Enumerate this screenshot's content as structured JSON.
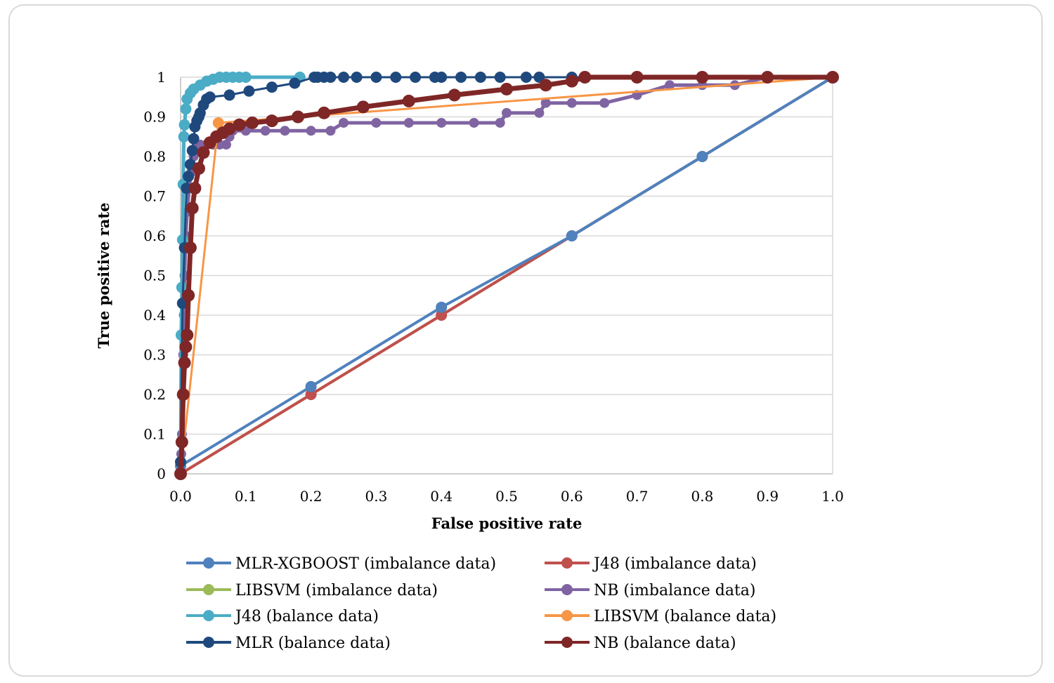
{
  "chart_data": {
    "type": "line",
    "title": "",
    "xlabel": "False positive rate",
    "ylabel": "True positive rate",
    "xlim": [
      0,
      1
    ],
    "ylim": [
      0,
      1
    ],
    "x_ticks": [
      "0.0",
      "0.1",
      "0.2",
      "0.3",
      "0.4",
      "0.5",
      "0.6",
      "0.7",
      "0.8",
      "0.9",
      "1.0"
    ],
    "y_ticks": [
      "0",
      "0.1",
      "0.2",
      "0.3",
      "0.4",
      "0.5",
      "0.6",
      "0.7",
      "0.8",
      "0.9",
      "1"
    ],
    "grid": "horizontal",
    "legend_position": "bottom",
    "series": [
      {
        "name": "MLR-XGBOOST (imbalance data)",
        "color": "#4f81bd",
        "x": [
          0,
          0.2,
          0.4,
          0.6,
          0.8,
          1.0
        ],
        "y": [
          0.02,
          0.22,
          0.42,
          0.6,
          0.8,
          1.0
        ]
      },
      {
        "name": "J48 (imbalance data)",
        "color": "#c0504d",
        "x": [
          0,
          0.2,
          0.4,
          0.6,
          0.8,
          1.0
        ],
        "y": [
          0,
          0.2,
          0.4,
          0.6,
          0.8,
          1.0
        ]
      },
      {
        "name": "LIBSVM (imbalance data)",
        "color": "#9bbb59",
        "x": [
          0,
          1.0
        ],
        "y": [
          0,
          1.0
        ]
      },
      {
        "name": "NB (imbalance data)",
        "color": "#8064a2",
        "x": [
          0,
          0.001,
          0.002,
          0.003,
          0.004,
          0.005,
          0.006,
          0.008,
          0.01,
          0.013,
          0.016,
          0.02,
          0.025,
          0.03,
          0.04,
          0.05,
          0.06,
          0.07,
          0.075,
          0.08,
          0.1,
          0.13,
          0.16,
          0.2,
          0.23,
          0.25,
          0.3,
          0.35,
          0.4,
          0.45,
          0.49,
          0.5,
          0.55,
          0.56,
          0.6,
          0.65,
          0.7,
          0.75,
          0.8,
          0.85,
          0.9,
          1.0
        ],
        "y": [
          0,
          0.05,
          0.1,
          0.2,
          0.3,
          0.4,
          0.5,
          0.6,
          0.66,
          0.72,
          0.76,
          0.8,
          0.82,
          0.83,
          0.83,
          0.83,
          0.83,
          0.83,
          0.85,
          0.865,
          0.865,
          0.865,
          0.865,
          0.865,
          0.865,
          0.885,
          0.885,
          0.885,
          0.885,
          0.885,
          0.885,
          0.91,
          0.91,
          0.935,
          0.935,
          0.935,
          0.955,
          0.98,
          0.98,
          0.98,
          1.0,
          1.0
        ]
      },
      {
        "name": "J48 (balance data)",
        "color": "#4bacc6",
        "x": [
          0,
          0.001,
          0.002,
          0.003,
          0.004,
          0.005,
          0.006,
          0.008,
          0.01,
          0.015,
          0.02,
          0.03,
          0.04,
          0.05,
          0.06,
          0.07,
          0.08,
          0.09,
          0.1,
          0.183
        ],
        "y": [
          0,
          0.35,
          0.47,
          0.59,
          0.73,
          0.85,
          0.88,
          0.92,
          0.945,
          0.96,
          0.97,
          0.98,
          0.99,
          0.995,
          1.0,
          1.0,
          1.0,
          1.0,
          1.0,
          1.0
        ]
      },
      {
        "name": "LIBSVM (balance data)",
        "color": "#f79646",
        "x": [
          0,
          0.058,
          1.0
        ],
        "y": [
          0,
          0.885,
          1.0
        ]
      },
      {
        "name": "MLR (balance data)",
        "color": "#1f497d",
        "x": [
          0,
          0.003,
          0.006,
          0.009,
          0.012,
          0.015,
          0.018,
          0.02,
          0.022,
          0.025,
          0.028,
          0.03,
          0.035,
          0.04,
          0.045,
          0.075,
          0.105,
          0.14,
          0.175,
          0.205,
          0.21,
          0.22,
          0.23,
          0.25,
          0.27,
          0.3,
          0.33,
          0.36,
          0.39,
          0.4,
          0.43,
          0.46,
          0.49,
          0.53,
          0.55,
          0.6,
          0.7,
          0.8,
          0.9,
          1.0
        ],
        "y": [
          0.03,
          0.43,
          0.57,
          0.72,
          0.75,
          0.78,
          0.815,
          0.845,
          0.875,
          0.89,
          0.9,
          0.91,
          0.93,
          0.945,
          0.95,
          0.955,
          0.965,
          0.975,
          0.985,
          1.0,
          1.0,
          1.0,
          1.0,
          1.0,
          1.0,
          1.0,
          1.0,
          1.0,
          1.0,
          1.0,
          1.0,
          1.0,
          1.0,
          1.0,
          1.0,
          1.0,
          1.0,
          1.0,
          1.0,
          1.0
        ]
      },
      {
        "name": "NB (balance data)",
        "color": "#7f2626",
        "x": [
          0,
          0.002,
          0.004,
          0.006,
          0.008,
          0.01,
          0.012,
          0.015,
          0.018,
          0.022,
          0.028,
          0.035,
          0.045,
          0.055,
          0.065,
          0.075,
          0.09,
          0.11,
          0.14,
          0.18,
          0.22,
          0.28,
          0.35,
          0.42,
          0.5,
          0.56,
          0.6,
          0.62,
          0.7,
          0.8,
          0.9,
          1.0
        ],
        "y": [
          0,
          0.08,
          0.2,
          0.28,
          0.32,
          0.35,
          0.45,
          0.57,
          0.67,
          0.72,
          0.77,
          0.81,
          0.835,
          0.85,
          0.86,
          0.87,
          0.88,
          0.885,
          0.89,
          0.9,
          0.91,
          0.925,
          0.94,
          0.955,
          0.97,
          0.98,
          0.99,
          1.0,
          1.0,
          1.0,
          1.0,
          1.0
        ]
      }
    ]
  }
}
